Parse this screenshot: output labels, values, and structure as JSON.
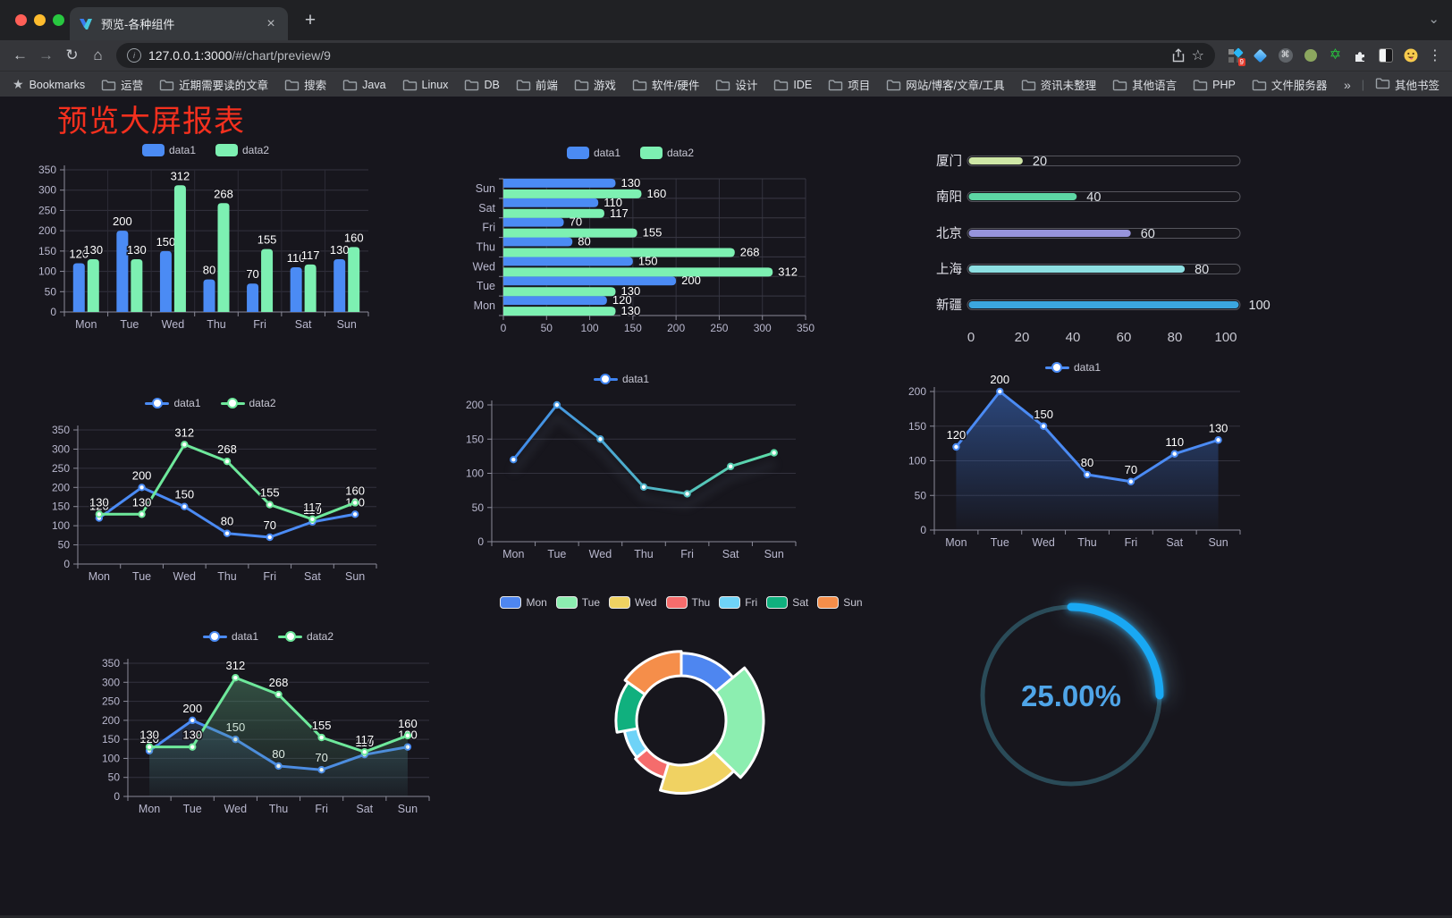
{
  "browser": {
    "tab_title": "预览-各种组件",
    "url_host": "127.0.0.1:3000",
    "url_path": "/#/chart/preview/9",
    "ext_badge": "9",
    "bookmarks": {
      "root_label": "Bookmarks",
      "items": [
        "运营",
        "近期需要读的文章",
        "搜索",
        "Java",
        "Linux",
        "DB",
        "前端",
        "游戏",
        "软件/硬件",
        "设计",
        "IDE",
        "项目",
        "网站/博客/文章/工具",
        "资讯未整理",
        "其他语言",
        "PHP",
        "文件服务器"
      ],
      "overflow": "»",
      "other_label": "其他书签"
    }
  },
  "icons": {
    "back": "←",
    "forward": "→",
    "reload": "↻",
    "home": "⌂",
    "star": "☆",
    "menu": "⋮",
    "chevron": "⌄",
    "close": "×",
    "new_tab": "+",
    "bookmarks_star": "★",
    "command": "⌘",
    "hexagram": "✡",
    "info": "i"
  },
  "page": {
    "title": "预览大屏报表",
    "title_color": "#f5301e",
    "background": "#17161d"
  },
  "chart_data": [
    {
      "id": "grouped-bar",
      "type": "bar",
      "legend_position": "top",
      "grid": true,
      "vgrid": true,
      "categories": [
        "Mon",
        "Tue",
        "Wed",
        "Thu",
        "Fri",
        "Sat",
        "Sun"
      ],
      "ylim": [
        0,
        350
      ],
      "yticks": [
        0,
        50,
        100,
        150,
        200,
        250,
        300,
        350
      ],
      "series": [
        {
          "name": "data1",
          "color": "#4b8bf4",
          "values": [
            120,
            200,
            150,
            80,
            70,
            110,
            130
          ]
        },
        {
          "name": "data2",
          "color": "#7df0b2",
          "values": [
            130,
            130,
            312,
            268,
            155,
            117,
            160
          ]
        }
      ]
    },
    {
      "id": "horizontal-bar",
      "type": "hbar",
      "legend_position": "top",
      "grid": true,
      "categories": [
        "Mon",
        "Tue",
        "Wed",
        "Thu",
        "Fri",
        "Sat",
        "Sun"
      ],
      "xlim": [
        0,
        350
      ],
      "xticks": [
        0,
        50,
        100,
        150,
        200,
        250,
        300,
        350
      ],
      "series": [
        {
          "name": "data1",
          "color": "#4b8bf4",
          "values": [
            120,
            200,
            150,
            80,
            70,
            110,
            130
          ]
        },
        {
          "name": "data2",
          "color": "#7df0b2",
          "values": [
            130,
            130,
            312,
            268,
            155,
            117,
            160
          ]
        }
      ]
    },
    {
      "id": "city-progress",
      "type": "progress",
      "max": 100,
      "xticks": [
        0,
        20,
        40,
        60,
        80,
        100
      ],
      "items": [
        {
          "label": "厦门",
          "value": 20,
          "color": "#cfe7a6"
        },
        {
          "label": "南阳",
          "value": 40,
          "color": "#5dd6a4"
        },
        {
          "label": "北京",
          "value": 60,
          "color": "#9794dc"
        },
        {
          "label": "上海",
          "value": 80,
          "color": "#8ddfe2"
        },
        {
          "label": "新疆",
          "value": 100,
          "color": "#3ba6df"
        }
      ]
    },
    {
      "id": "line-basic",
      "type": "line",
      "labels": true,
      "legend_position": "top",
      "grid": true,
      "categories": [
        "Mon",
        "Tue",
        "Wed",
        "Thu",
        "Fri",
        "Sat",
        "Sun"
      ],
      "ylim": [
        0,
        350
      ],
      "yticks": [
        0,
        50,
        100,
        150,
        200,
        250,
        300,
        350
      ],
      "series": [
        {
          "name": "data1",
          "color": "#4b8bf4",
          "values": [
            120,
            200,
            150,
            80,
            70,
            110,
            130
          ]
        },
        {
          "name": "data2",
          "color": "#6ee89b",
          "values": [
            130,
            130,
            312,
            268,
            155,
            117,
            160
          ]
        }
      ]
    },
    {
      "id": "line-gradient",
      "type": "line",
      "labels": false,
      "shadow": true,
      "legend_position": "top",
      "grid": true,
      "categories": [
        "Mon",
        "Tue",
        "Wed",
        "Thu",
        "Fri",
        "Sat",
        "Sun"
      ],
      "ylim": [
        0,
        200
      ],
      "yticks": [
        0,
        50,
        100,
        150,
        200
      ],
      "series": [
        {
          "name": "data1",
          "gradient": [
            "#3f83f0",
            "#5fe3a1"
          ],
          "values": [
            120,
            200,
            150,
            80,
            70,
            110,
            130
          ]
        }
      ]
    },
    {
      "id": "line-area",
      "type": "line",
      "labels": true,
      "legend_position": "top",
      "grid": true,
      "categories": [
        "Mon",
        "Tue",
        "Wed",
        "Thu",
        "Fri",
        "Sat",
        "Sun"
      ],
      "ylim": [
        0,
        200
      ],
      "yticks": [
        0,
        50,
        100,
        150,
        200
      ],
      "series": [
        {
          "name": "data1",
          "color": "#4b8bf4",
          "area": [
            "rgba(59,110,200,0.55)",
            "rgba(59,110,200,0.02)"
          ],
          "values": [
            120,
            200,
            150,
            80,
            70,
            110,
            130
          ]
        }
      ]
    },
    {
      "id": "line-area-double",
      "type": "line",
      "labels": true,
      "legend_position": "top",
      "grid": true,
      "categories": [
        "Mon",
        "Tue",
        "Wed",
        "Thu",
        "Fri",
        "Sat",
        "Sun"
      ],
      "ylim": [
        0,
        350
      ],
      "yticks": [
        0,
        50,
        100,
        150,
        200,
        250,
        300,
        350
      ],
      "series": [
        {
          "name": "data1",
          "color": "#4b8bf4",
          "area": [
            "rgba(70,115,175,0.45)",
            "rgba(70,115,175,0.03)"
          ],
          "values": [
            120,
            200,
            150,
            80,
            70,
            110,
            130
          ]
        },
        {
          "name": "data2",
          "color": "#6ee89b",
          "area": [
            "rgba(84,150,112,0.50)",
            "rgba(84,150,112,0.04)"
          ],
          "values": [
            130,
            130,
            312,
            268,
            155,
            117,
            160
          ]
        }
      ]
    },
    {
      "id": "rose-pie",
      "type": "rose",
      "legend_position": "top",
      "categories": [
        "Mon",
        "Tue",
        "Wed",
        "Thu",
        "Fri",
        "Sat",
        "Sun"
      ],
      "values": [
        120,
        200,
        150,
        80,
        70,
        110,
        130
      ],
      "colors": [
        "#4e86f0",
        "#8ceeb0",
        "#f0d262",
        "#f56c6c",
        "#6fd3f7",
        "#10b07e",
        "#f58e4a"
      ]
    },
    {
      "id": "ring-progress",
      "type": "ring",
      "value_text": "25.00%",
      "percent": 25,
      "color": "#19a8f3",
      "track_color": "#2a4b58",
      "text_color": "#4fa5e8"
    }
  ]
}
